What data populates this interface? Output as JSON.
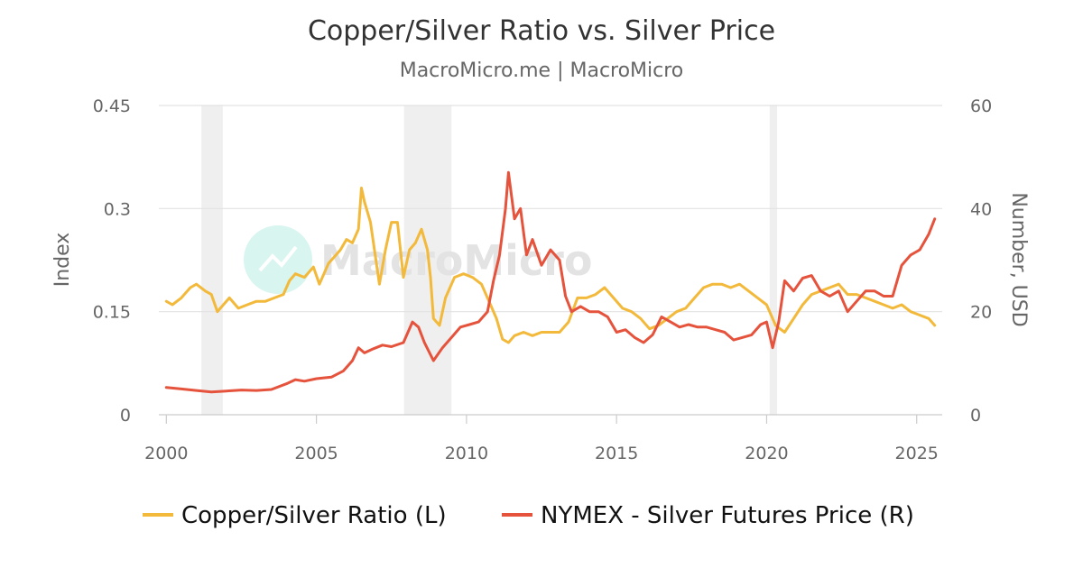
{
  "chart_data": {
    "type": "line",
    "title": "Copper/Silver Ratio vs. Silver Price",
    "subtitle": "MacroMicro.me | MacroMicro",
    "watermark": "MacroMicro",
    "y_left": {
      "label": "Index",
      "ticks": [
        "0",
        "0.15",
        "0.3",
        "0.45"
      ],
      "range": [
        0,
        0.45
      ]
    },
    "y_right": {
      "label": "Number, USD",
      "ticks": [
        "0",
        "20",
        "40",
        "60"
      ],
      "range": [
        0,
        60
      ]
    },
    "x_axis": {
      "ticks": [
        "2000",
        "2005",
        "2010",
        "2015",
        "2020",
        "2025"
      ],
      "range": [
        1999.75,
        2025.85
      ]
    },
    "grid": true,
    "recession_bands": [
      [
        2001.17,
        2001.88
      ],
      [
        2007.92,
        2009.5
      ],
      [
        2020.1,
        2020.35
      ]
    ],
    "series": [
      {
        "name": "Copper/Silver Ratio (L)",
        "axis": "left",
        "color": "#f2b93b",
        "x": [
          2000.0,
          2000.2,
          2000.5,
          2000.8,
          2001.0,
          2001.3,
          2001.5,
          2001.7,
          2001.9,
          2002.1,
          2002.4,
          2002.7,
          2003.0,
          2003.3,
          2003.6,
          2003.9,
          2004.1,
          2004.3,
          2004.6,
          2004.9,
          2005.1,
          2005.4,
          2005.6,
          2005.8,
          2006.0,
          2006.2,
          2006.4,
          2006.5,
          2006.6,
          2006.8,
          2007.0,
          2007.1,
          2007.3,
          2007.5,
          2007.7,
          2007.9,
          2008.1,
          2008.3,
          2008.5,
          2008.7,
          2008.8,
          2008.9,
          2009.1,
          2009.3,
          2009.6,
          2009.9,
          2010.2,
          2010.5,
          2010.8,
          2011.0,
          2011.2,
          2011.4,
          2011.6,
          2011.9,
          2012.2,
          2012.5,
          2012.8,
          2013.1,
          2013.4,
          2013.7,
          2014.0,
          2014.3,
          2014.6,
          2014.9,
          2015.2,
          2015.5,
          2015.8,
          2016.1,
          2016.4,
          2016.7,
          2017.0,
          2017.3,
          2017.6,
          2017.9,
          2018.2,
          2018.5,
          2018.8,
          2019.1,
          2019.4,
          2019.7,
          2020.0,
          2020.2,
          2020.3,
          2020.6,
          2020.9,
          2021.2,
          2021.5,
          2021.8,
          2022.1,
          2022.4,
          2022.7,
          2023.0,
          2023.3,
          2023.6,
          2023.9,
          2024.2,
          2024.5,
          2024.8,
          2025.1,
          2025.4,
          2025.6
        ],
        "values": [
          0.165,
          0.16,
          0.17,
          0.185,
          0.19,
          0.18,
          0.175,
          0.15,
          0.16,
          0.17,
          0.155,
          0.16,
          0.165,
          0.165,
          0.17,
          0.175,
          0.195,
          0.205,
          0.2,
          0.215,
          0.19,
          0.22,
          0.23,
          0.24,
          0.255,
          0.25,
          0.27,
          0.33,
          0.31,
          0.28,
          0.22,
          0.19,
          0.24,
          0.28,
          0.28,
          0.2,
          0.24,
          0.25,
          0.27,
          0.24,
          0.2,
          0.14,
          0.13,
          0.17,
          0.2,
          0.205,
          0.2,
          0.19,
          0.16,
          0.14,
          0.11,
          0.105,
          0.115,
          0.12,
          0.115,
          0.12,
          0.12,
          0.12,
          0.135,
          0.17,
          0.17,
          0.175,
          0.185,
          0.17,
          0.155,
          0.15,
          0.14,
          0.125,
          0.13,
          0.14,
          0.15,
          0.155,
          0.17,
          0.185,
          0.19,
          0.19,
          0.185,
          0.19,
          0.18,
          0.17,
          0.16,
          0.14,
          0.13,
          0.12,
          0.14,
          0.16,
          0.175,
          0.18,
          0.185,
          0.19,
          0.175,
          0.175,
          0.17,
          0.165,
          0.16,
          0.155,
          0.16,
          0.15,
          0.145,
          0.14,
          0.13
        ]
      },
      {
        "name": "NYMEX - Silver Futures Price (R)",
        "axis": "right",
        "color": "#e5533d",
        "x": [
          2000.0,
          2000.5,
          2001.0,
          2001.5,
          2002.0,
          2002.5,
          2003.0,
          2003.5,
          2004.0,
          2004.3,
          2004.6,
          2005.0,
          2005.5,
          2005.9,
          2006.2,
          2006.4,
          2006.6,
          2006.9,
          2007.2,
          2007.5,
          2007.9,
          2008.2,
          2008.4,
          2008.6,
          2008.9,
          2009.2,
          2009.5,
          2009.8,
          2010.1,
          2010.4,
          2010.7,
          2010.9,
          2011.1,
          2011.3,
          2011.4,
          2011.6,
          2011.8,
          2012.0,
          2012.2,
          2012.5,
          2012.8,
          2013.1,
          2013.3,
          2013.5,
          2013.8,
          2014.1,
          2014.4,
          2014.7,
          2015.0,
          2015.3,
          2015.6,
          2015.9,
          2016.2,
          2016.5,
          2016.8,
          2017.1,
          2017.4,
          2017.7,
          2018.0,
          2018.3,
          2018.6,
          2018.9,
          2019.2,
          2019.5,
          2019.8,
          2020.0,
          2020.2,
          2020.4,
          2020.6,
          2020.9,
          2021.2,
          2021.5,
          2021.8,
          2022.1,
          2022.4,
          2022.7,
          2023.0,
          2023.3,
          2023.6,
          2023.9,
          2024.2,
          2024.5,
          2024.8,
          2025.1,
          2025.4,
          2025.6
        ],
        "values": [
          5.3,
          5.0,
          4.7,
          4.4,
          4.6,
          4.8,
          4.7,
          4.9,
          6.0,
          6.8,
          6.5,
          7.0,
          7.3,
          8.5,
          10.5,
          13.0,
          12.0,
          12.8,
          13.5,
          13.2,
          14.0,
          18.0,
          17.0,
          14.0,
          10.5,
          13.0,
          15.0,
          17.0,
          17.5,
          18.0,
          20.0,
          26.0,
          31.0,
          40.0,
          47.0,
          38.0,
          40.0,
          31.0,
          34.0,
          29.0,
          32.0,
          30.0,
          23.0,
          20.0,
          21.0,
          20.0,
          20.0,
          19.0,
          16.0,
          16.5,
          15.0,
          14.0,
          15.5,
          19.0,
          18.0,
          17.0,
          17.5,
          17.0,
          17.0,
          16.5,
          16.0,
          14.5,
          15.0,
          15.5,
          17.5,
          18.0,
          13.0,
          18.0,
          26.0,
          24.0,
          26.5,
          27.0,
          24.0,
          23.0,
          24.0,
          20.0,
          22.0,
          24.0,
          24.0,
          23.0,
          23.0,
          29.0,
          31.0,
          32.0,
          35.0,
          38.0
        ]
      }
    ]
  }
}
